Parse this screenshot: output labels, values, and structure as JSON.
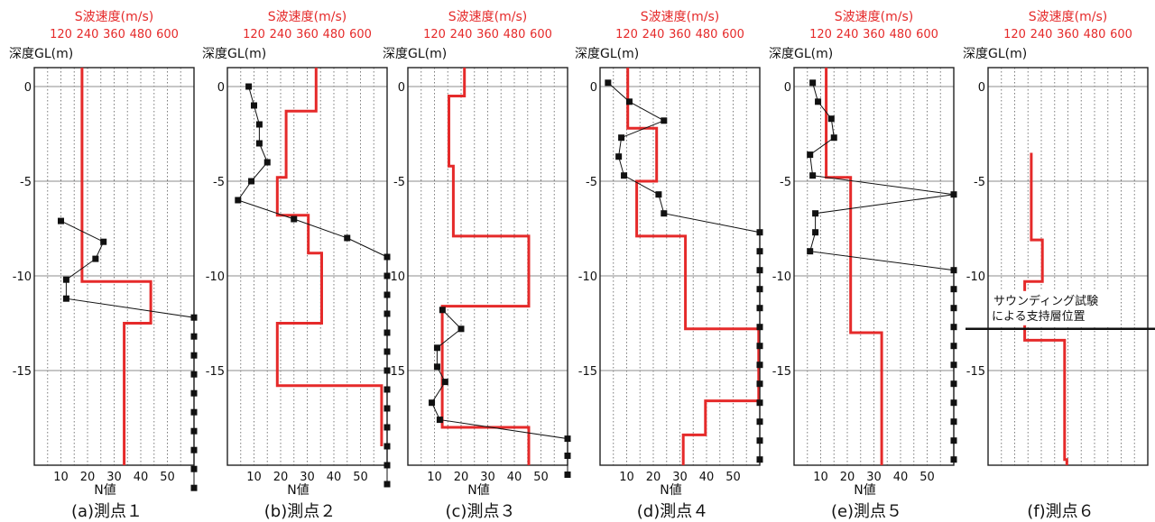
{
  "figure": {
    "colors": {
      "vs": "#e52a2a",
      "nvalue": "#111111",
      "grid_major": "#8c8c8c",
      "grid_minor": "#7a7a7a"
    },
    "common": {
      "top_axis_title": "S波速度(m/s)",
      "top_ticks": [
        120,
        240,
        360,
        480,
        600
      ],
      "depth_label": "深度GL(m)",
      "depth_ticks": [
        0,
        -5,
        -10,
        -15
      ],
      "bottom_axis_title": "N値",
      "bottom_ticks": [
        10,
        20,
        30,
        40,
        50
      ]
    },
    "annotation": {
      "panel": 5,
      "lines": [
        "サウンディング試験",
        "による支持層位置"
      ],
      "depth": -12.8
    }
  },
  "chart_data": [
    {
      "type": "line",
      "caption": "(a)測点１",
      "x_bottom_range": [
        0,
        60
      ],
      "x_top_range": [
        0,
        720
      ],
      "y_range": [
        -20,
        2
      ],
      "vs_step": [
        [
          215,
          1
        ],
        [
          215,
          -10.3
        ],
        [
          525,
          -10.3
        ],
        [
          525,
          -12.5
        ],
        [
          405,
          -12.5
        ],
        [
          405,
          -20
        ]
      ],
      "n_points": [
        [
          10,
          -7.1
        ],
        [
          26,
          -8.2
        ],
        [
          23,
          -9.1
        ],
        [
          12,
          -10.2
        ],
        [
          12,
          -11.2
        ],
        [
          60,
          -12.2
        ],
        [
          60,
          -13.2
        ],
        [
          60,
          -14.2
        ],
        [
          60,
          -15.2
        ],
        [
          60,
          -16.2
        ],
        [
          60,
          -17.2
        ],
        [
          60,
          -18.2
        ],
        [
          60,
          -19.2
        ],
        [
          60,
          -20.2
        ],
        [
          60,
          -21.2
        ]
      ]
    },
    {
      "type": "line",
      "caption": "(b)測点２",
      "x_bottom_range": [
        0,
        60
      ],
      "x_top_range": [
        0,
        720
      ],
      "y_range": [
        -20,
        2
      ],
      "vs_step": [
        [
          400,
          1
        ],
        [
          400,
          -1.3
        ],
        [
          265,
          -1.3
        ],
        [
          265,
          -4.8
        ],
        [
          225,
          -4.8
        ],
        [
          225,
          -6.8
        ],
        [
          365,
          -6.8
        ],
        [
          365,
          -8.8
        ],
        [
          425,
          -8.8
        ],
        [
          425,
          -12.5
        ],
        [
          225,
          -12.5
        ],
        [
          225,
          -15.8
        ],
        [
          695,
          -15.8
        ],
        [
          695,
          -19
        ]
      ],
      "n_points": [
        [
          8,
          0
        ],
        [
          10,
          -1
        ],
        [
          12,
          -2
        ],
        [
          12,
          -3
        ],
        [
          15,
          -4
        ],
        [
          9,
          -5
        ],
        [
          4,
          -6
        ],
        [
          25,
          -7
        ],
        [
          45,
          -8
        ],
        [
          60,
          -9
        ],
        [
          60,
          -10
        ],
        [
          60,
          -11
        ],
        [
          60,
          -12
        ],
        [
          60,
          -13
        ],
        [
          60,
          -14
        ],
        [
          60,
          -15
        ],
        [
          60,
          -16
        ],
        [
          60,
          -17
        ],
        [
          60,
          -18
        ],
        [
          60,
          -19
        ],
        [
          60,
          -20
        ],
        [
          60,
          -21
        ]
      ]
    },
    {
      "type": "line",
      "caption": "(c)測点３",
      "x_bottom_range": [
        0,
        60
      ],
      "x_top_range": [
        0,
        720
      ],
      "y_range": [
        -20,
        2
      ],
      "vs_step": [
        [
          255,
          1
        ],
        [
          255,
          -0.5
        ],
        [
          185,
          -0.5
        ],
        [
          185,
          -4.2
        ],
        [
          205,
          -4.2
        ],
        [
          205,
          -7.9
        ],
        [
          545,
          -7.9
        ],
        [
          545,
          -11.6
        ],
        [
          155,
          -11.6
        ],
        [
          155,
          -18
        ],
        [
          545,
          -18
        ],
        [
          545,
          -20
        ]
      ],
      "n_points": [
        [
          13,
          -11.8
        ],
        [
          20,
          -12.8
        ],
        [
          11,
          -13.8
        ],
        [
          11,
          -14.8
        ],
        [
          14,
          -15.6
        ],
        [
          9,
          -16.7
        ],
        [
          12,
          -17.6
        ],
        [
          60,
          -18.6
        ],
        [
          60,
          -19.5
        ],
        [
          60,
          -20.5
        ]
      ]
    },
    {
      "type": "line",
      "caption": "(d)測点４",
      "x_bottom_range": [
        0,
        60
      ],
      "x_top_range": [
        0,
        720
      ],
      "y_range": [
        -20,
        2
      ],
      "vs_step": [
        [
          125,
          1
        ],
        [
          125,
          -2.2
        ],
        [
          255,
          -2.2
        ],
        [
          255,
          -5
        ],
        [
          165,
          -5
        ],
        [
          165,
          -7.9
        ],
        [
          385,
          -7.9
        ],
        [
          385,
          -12.8
        ],
        [
          715,
          -12.8
        ],
        [
          715,
          -16.6
        ],
        [
          475,
          -16.6
        ],
        [
          475,
          -18.4
        ],
        [
          375,
          -18.4
        ],
        [
          375,
          -20
        ]
      ],
      "n_points": [
        [
          3,
          0.2
        ],
        [
          11,
          -0.8
        ],
        [
          24,
          -1.8
        ],
        [
          8,
          -2.7
        ],
        [
          7,
          -3.7
        ],
        [
          9,
          -4.7
        ],
        [
          22,
          -5.7
        ],
        [
          24,
          -6.7
        ],
        [
          60,
          -7.7
        ],
        [
          60,
          -8.7
        ],
        [
          60,
          -9.7
        ],
        [
          60,
          -10.7
        ],
        [
          60,
          -11.7
        ],
        [
          60,
          -12.7
        ],
        [
          60,
          -13.7
        ],
        [
          60,
          -14.7
        ],
        [
          60,
          -15.7
        ],
        [
          60,
          -16.7
        ],
        [
          60,
          -17.7
        ],
        [
          60,
          -18.7
        ],
        [
          60,
          -19.7
        ]
      ]
    },
    {
      "type": "line",
      "caption": "(e)測点５",
      "x_bottom_range": [
        0,
        60
      ],
      "x_top_range": [
        0,
        720
      ],
      "y_range": [
        -20,
        2
      ],
      "vs_step": [
        [
          145,
          1
        ],
        [
          145,
          -4.8
        ],
        [
          255,
          -4.8
        ],
        [
          255,
          -13
        ],
        [
          395,
          -13
        ],
        [
          395,
          -20
        ]
      ],
      "n_points": [
        [
          7,
          0.2
        ],
        [
          9,
          -0.8
        ],
        [
          14,
          -1.7
        ],
        [
          15,
          -2.7
        ],
        [
          6,
          -3.6
        ],
        [
          7,
          -4.7
        ],
        [
          60,
          -5.7
        ],
        [
          8,
          -6.7
        ],
        [
          8,
          -7.7
        ],
        [
          6,
          -8.7
        ],
        [
          60,
          -9.7
        ],
        [
          60,
          -10.7
        ],
        [
          60,
          -11.7
        ],
        [
          60,
          -12.7
        ],
        [
          60,
          -13.7
        ],
        [
          60,
          -14.7
        ],
        [
          60,
          -15.7
        ],
        [
          60,
          -16.7
        ],
        [
          60,
          -17.7
        ],
        [
          60,
          -18.7
        ],
        [
          60,
          -19.7
        ]
      ]
    },
    {
      "type": "line",
      "caption": "(f)測点６",
      "x_bottom_range": [
        0,
        60
      ],
      "x_top_range": [
        0,
        720
      ],
      "y_range": [
        -20,
        2
      ],
      "vs_step": [
        [
          195,
          -3.5
        ],
        [
          195,
          -8.1
        ],
        [
          245,
          -8.1
        ],
        [
          245,
          -10.3
        ],
        [
          165,
          -10.3
        ],
        [
          165,
          -13.4
        ],
        [
          345,
          -13.4
        ],
        [
          345,
          -19.7
        ],
        [
          355,
          -19.7
        ],
        [
          355,
          -20
        ]
      ],
      "n_points": []
    }
  ]
}
